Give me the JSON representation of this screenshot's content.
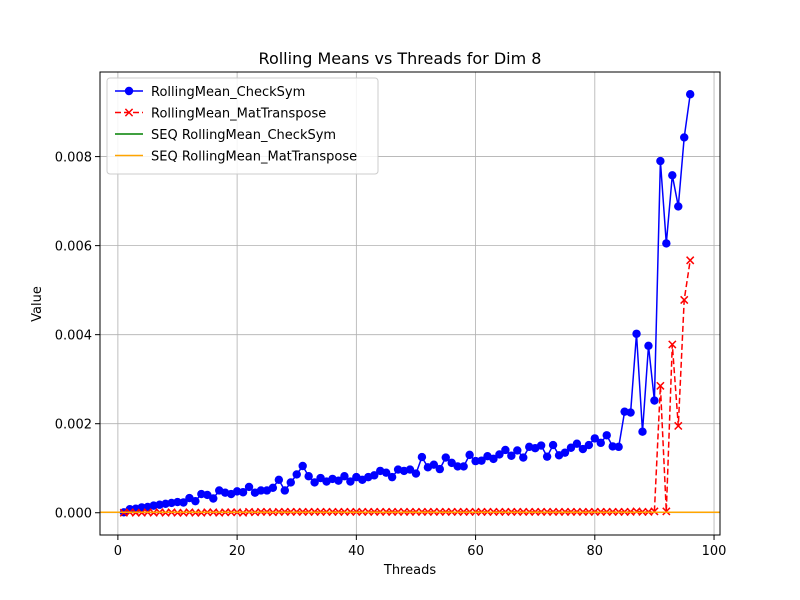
{
  "chart_data": {
    "type": "line",
    "title": "Rolling Means vs Threads for Dim 8",
    "xlabel": "Threads",
    "ylabel": "Value",
    "xlim": [
      -3,
      101
    ],
    "ylim": [
      -0.0005,
      0.0099
    ],
    "xticks": [
      0,
      20,
      40,
      60,
      80,
      100
    ],
    "xtick_labels": [
      "0",
      "20",
      "40",
      "60",
      "80",
      "100"
    ],
    "yticks": [
      0,
      0.002,
      0.004,
      0.006,
      0.008
    ],
    "ytick_labels": [
      "0.000",
      "0.002",
      "0.004",
      "0.006",
      "0.008"
    ],
    "grid": true,
    "legend_position": "top-left",
    "series": [
      {
        "name": "RollingMean_CheckSym",
        "color": "#0000ff",
        "style": "solid",
        "marker": "circle",
        "x": [
          1,
          2,
          3,
          4,
          5,
          6,
          7,
          8,
          9,
          10,
          11,
          12,
          13,
          14,
          15,
          16,
          17,
          18,
          19,
          20,
          21,
          22,
          23,
          24,
          25,
          26,
          27,
          28,
          29,
          30,
          31,
          32,
          33,
          34,
          35,
          36,
          37,
          38,
          39,
          40,
          41,
          42,
          43,
          44,
          45,
          46,
          47,
          48,
          49,
          50,
          51,
          52,
          53,
          54,
          55,
          56,
          57,
          58,
          59,
          60,
          61,
          62,
          63,
          64,
          65,
          66,
          67,
          68,
          69,
          70,
          71,
          72,
          73,
          74,
          75,
          76,
          77,
          78,
          79,
          80,
          81,
          82,
          83,
          84,
          85,
          86,
          87,
          88,
          89,
          90,
          91,
          92,
          93,
          94,
          95,
          96
        ],
        "y": [
          1e-05,
          8e-05,
          9e-05,
          0.00012,
          0.00013,
          0.00016,
          0.00018,
          0.0002,
          0.00022,
          0.00024,
          0.00023,
          0.00033,
          0.00026,
          0.00042,
          0.0004,
          0.00032,
          0.0005,
          0.00045,
          0.00042,
          0.00048,
          0.00046,
          0.00058,
          0.00045,
          0.0005,
          0.0005,
          0.00056,
          0.00074,
          0.0005,
          0.00068,
          0.00086,
          0.00105,
          0.00082,
          0.00068,
          0.00078,
          0.0007,
          0.00076,
          0.00072,
          0.00082,
          0.0007,
          0.0008,
          0.00074,
          0.0008,
          0.00084,
          0.00094,
          0.0009,
          0.0008,
          0.00097,
          0.00094,
          0.00097,
          0.00088,
          0.00125,
          0.00102,
          0.00108,
          0.00098,
          0.00124,
          0.00112,
          0.00104,
          0.00104,
          0.0013,
          0.00116,
          0.00117,
          0.00127,
          0.00121,
          0.00131,
          0.00141,
          0.00128,
          0.0014,
          0.00124,
          0.00148,
          0.00145,
          0.00151,
          0.00126,
          0.00152,
          0.00129,
          0.00135,
          0.00146,
          0.00155,
          0.00143,
          0.00152,
          0.00167,
          0.00157,
          0.00174,
          0.00149,
          0.00148,
          0.00227,
          0.00225,
          0.00402,
          0.00182,
          0.00375,
          0.00252,
          0.0079,
          0.00605,
          0.00758,
          0.00688,
          0.00843,
          0.0094
        ]
      },
      {
        "name": "RollingMean_MatTranspose",
        "color": "#ff0000",
        "style": "dashed",
        "marker": "x",
        "x": [
          1,
          2,
          3,
          4,
          5,
          6,
          7,
          8,
          9,
          10,
          11,
          12,
          13,
          14,
          15,
          16,
          17,
          18,
          19,
          20,
          21,
          22,
          23,
          24,
          25,
          26,
          27,
          28,
          29,
          30,
          31,
          32,
          33,
          34,
          35,
          36,
          37,
          38,
          39,
          40,
          41,
          42,
          43,
          44,
          45,
          46,
          47,
          48,
          49,
          50,
          51,
          52,
          53,
          54,
          55,
          56,
          57,
          58,
          59,
          60,
          61,
          62,
          63,
          64,
          65,
          66,
          67,
          68,
          69,
          70,
          71,
          72,
          73,
          74,
          75,
          76,
          77,
          78,
          79,
          80,
          81,
          82,
          83,
          84,
          85,
          86,
          87,
          88,
          89,
          90,
          91,
          92,
          93,
          94,
          95,
          96
        ],
        "y": [
          0.0,
          1e-05,
          0.0,
          0.0,
          1e-05,
          0.0,
          1e-05,
          0.0,
          1e-05,
          0.0,
          0.0,
          1e-05,
          0.0,
          0.0,
          1e-05,
          1e-05,
          0.0,
          1e-05,
          1e-05,
          1e-05,
          0.0,
          2e-05,
          1e-05,
          2e-05,
          2e-05,
          1e-05,
          2e-05,
          2e-05,
          2e-05,
          2e-05,
          2e-05,
          2e-05,
          2e-05,
          2e-05,
          2e-05,
          2e-05,
          2e-05,
          2e-05,
          2e-05,
          2e-05,
          2e-05,
          2e-05,
          2e-05,
          2e-05,
          2e-05,
          2e-05,
          2e-05,
          2e-05,
          2e-05,
          2e-05,
          2e-05,
          2e-05,
          2e-05,
          2e-05,
          2e-05,
          2e-05,
          2e-05,
          2e-05,
          2e-05,
          2e-05,
          2e-05,
          2e-05,
          2e-05,
          2e-05,
          2e-05,
          2e-05,
          2e-05,
          2e-05,
          2e-05,
          2e-05,
          2e-05,
          2e-05,
          2e-05,
          2e-05,
          2e-05,
          2e-05,
          2e-05,
          2e-05,
          2e-05,
          2e-05,
          2e-05,
          2e-05,
          2e-05,
          2e-05,
          2e-05,
          2e-05,
          3e-05,
          2e-05,
          2e-05,
          3e-05,
          0.00285,
          3e-05,
          0.00378,
          0.00195,
          0.00478,
          0.00567
        ]
      },
      {
        "name": "SEQ RollingMean_CheckSym",
        "color": "#008000",
        "style": "hline",
        "y": 1e-05
      },
      {
        "name": "SEQ RollingMean_MatTranspose",
        "color": "#ffa500",
        "style": "hline",
        "y": 1e-05
      }
    ]
  }
}
